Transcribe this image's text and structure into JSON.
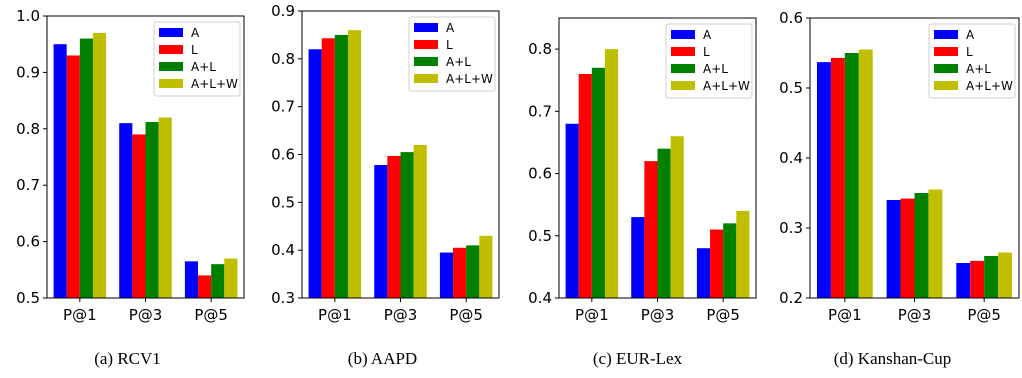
{
  "figure": {
    "captions": [
      "(a)  RCV1",
      "(b)  AAPD",
      "(c)  EUR-Lex",
      "(d)  Kanshan-Cup"
    ]
  },
  "chart_data": [
    {
      "type": "bar",
      "categories": [
        "P@1",
        "P@3",
        "P@5"
      ],
      "series": [
        {
          "name": "A",
          "color": "#0000ff",
          "values": [
            0.95,
            0.81,
            0.565
          ]
        },
        {
          "name": "L",
          "color": "#ff0000",
          "values": [
            0.93,
            0.79,
            0.54
          ]
        },
        {
          "name": "A+L",
          "color": "#008000",
          "values": [
            0.96,
            0.812,
            0.56
          ]
        },
        {
          "name": "A+L+W",
          "color": "#bfbf00",
          "values": [
            0.97,
            0.82,
            0.57
          ]
        }
      ],
      "ylim": [
        0.5,
        1.0
      ],
      "yticks": [
        "0.5",
        "0.6",
        "0.7",
        "0.8",
        "0.9",
        "1.0"
      ],
      "legend": "top-right",
      "caption": "(a)  RCV1"
    },
    {
      "type": "bar",
      "categories": [
        "P@1",
        "P@3",
        "P@5"
      ],
      "series": [
        {
          "name": "A",
          "color": "#0000ff",
          "values": [
            0.82,
            0.578,
            0.395
          ]
        },
        {
          "name": "L",
          "color": "#ff0000",
          "values": [
            0.843,
            0.597,
            0.405
          ]
        },
        {
          "name": "A+L",
          "color": "#008000",
          "values": [
            0.85,
            0.605,
            0.41
          ]
        },
        {
          "name": "A+L+W",
          "color": "#bfbf00",
          "values": [
            0.86,
            0.62,
            0.43
          ]
        }
      ],
      "ylim": [
        0.3,
        0.9
      ],
      "yticks": [
        "0.3",
        "0.4",
        "0.5",
        "0.6",
        "0.7",
        "0.8",
        "0.9"
      ],
      "legend": "top-right",
      "caption": "(b)  AAPD"
    },
    {
      "type": "bar",
      "categories": [
        "P@1",
        "P@3",
        "P@5"
      ],
      "series": [
        {
          "name": "A",
          "color": "#0000ff",
          "values": [
            0.68,
            0.53,
            0.48
          ]
        },
        {
          "name": "L",
          "color": "#ff0000",
          "values": [
            0.76,
            0.62,
            0.51
          ]
        },
        {
          "name": "A+L",
          "color": "#008000",
          "values": [
            0.77,
            0.64,
            0.52
          ]
        },
        {
          "name": "A+L+W",
          "color": "#bfbf00",
          "values": [
            0.8,
            0.66,
            0.54
          ]
        }
      ],
      "ylim": [
        0.4,
        0.85
      ],
      "yticks": [
        "0.4",
        "0.5",
        "0.6",
        "0.7",
        "0.8"
      ],
      "legend": "top-right",
      "caption": "(c)  EUR-Lex"
    },
    {
      "type": "bar",
      "categories": [
        "P@1",
        "P@3",
        "P@5"
      ],
      "series": [
        {
          "name": "A",
          "color": "#0000ff",
          "values": [
            0.537,
            0.34,
            0.25
          ]
        },
        {
          "name": "L",
          "color": "#ff0000",
          "values": [
            0.543,
            0.342,
            0.253
          ]
        },
        {
          "name": "A+L",
          "color": "#008000",
          "values": [
            0.55,
            0.35,
            0.26
          ]
        },
        {
          "name": "A+L+W",
          "color": "#bfbf00",
          "values": [
            0.555,
            0.355,
            0.265
          ]
        }
      ],
      "ylim": [
        0.2,
        0.6
      ],
      "yticks": [
        "0.2",
        "0.3",
        "0.4",
        "0.5",
        "0.6"
      ],
      "legend": "top-right",
      "caption": "(d)  Kanshan-Cup"
    }
  ]
}
